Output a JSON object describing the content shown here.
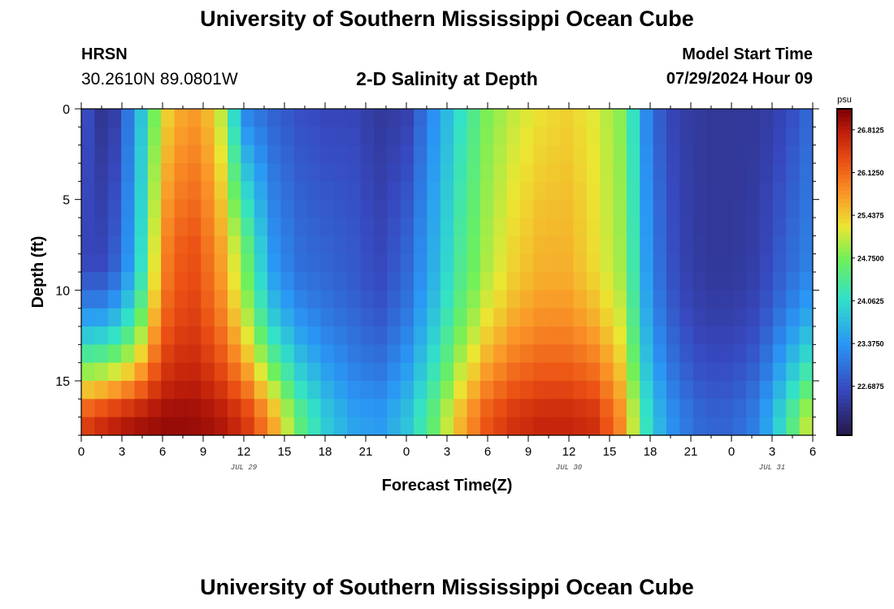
{
  "header": {
    "title": "University of Southern Mississippi Ocean Cube",
    "station_name": "HRSN",
    "coordinates": "30.2610N  89.0801W",
    "chart_title": "2-D Salinity at Depth",
    "model_start_label": "Model Start Time",
    "model_start_value": "07/29/2024 Hour 09"
  },
  "footer": {
    "title": "University of Southern Mississippi Ocean Cube"
  },
  "chart_data": {
    "type": "heatmap",
    "title": "2-D Salinity at Depth",
    "xlabel": "Forecast Time(Z)",
    "ylabel": "Depth (ft)",
    "x_unit": "forecast hour",
    "xlim": [
      0,
      54
    ],
    "ylim": [
      0,
      18
    ],
    "y_reversed": true,
    "x_ticks": [
      0,
      3,
      6,
      9,
      12,
      15,
      18,
      21,
      24,
      27,
      30,
      33,
      36,
      39,
      42,
      45,
      48,
      51,
      54
    ],
    "x_tick_labels": [
      "0",
      "3",
      "6",
      "9",
      "12",
      "15",
      "18",
      "21",
      "0",
      "3",
      "6",
      "9",
      "12",
      "15",
      "18",
      "21",
      "0",
      "3",
      "6"
    ],
    "y_ticks": [
      0,
      5,
      10,
      15
    ],
    "y_tick_labels": [
      "0",
      "5",
      "10",
      "15"
    ],
    "date_labels": [
      {
        "label": "JUL 29",
        "x": 12
      },
      {
        "label": "JUL 30",
        "x": 36
      },
      {
        "label": "JUL 31",
        "x": 51
      }
    ],
    "colorbar": {
      "unit_label": "psu",
      "range": [
        21.9,
        27.15
      ],
      "ticks": [
        26.8125,
        26.125,
        25.4375,
        24.75,
        24.0625,
        23.375,
        22.6875
      ],
      "tick_labels": [
        "26.8125",
        "26.1250",
        "25.4375",
        "24.7500",
        "24.0625",
        "23.3750",
        "22.6875"
      ]
    },
    "grid": false,
    "grid_size": {
      "columns": 55,
      "rows": 18
    },
    "sample_values": {
      "note": "salinity (psu) at time/depth samples used to build the field",
      "times": [
        0,
        2,
        4,
        6,
        8,
        10,
        12,
        14,
        16,
        18,
        20,
        22,
        24,
        26,
        28,
        30,
        32,
        34,
        36,
        38,
        40,
        42,
        44,
        46,
        48,
        50,
        52,
        54
      ],
      "surface": [
        22.8,
        22.2,
        23.4,
        25.3,
        25.8,
        25.4,
        23.2,
        22.9,
        22.7,
        22.6,
        22.6,
        22.4,
        22.5,
        23.3,
        24.1,
        24.8,
        25.1,
        25.3,
        25.4,
        25.2,
        24.8,
        23.0,
        22.5,
        22.4,
        22.4,
        22.4,
        22.6,
        23.0
      ],
      "mid_8ft": [
        22.6,
        22.6,
        23.6,
        25.9,
        26.4,
        25.9,
        24.8,
        23.4,
        23.0,
        22.9,
        22.8,
        22.6,
        22.9,
        23.6,
        24.4,
        25.0,
        25.4,
        25.6,
        25.6,
        25.3,
        24.9,
        23.2,
        22.6,
        22.4,
        22.4,
        22.5,
        22.9,
        23.2
      ],
      "bottom_17ft": [
        26.4,
        26.7,
        26.9,
        27.0,
        27.0,
        26.9,
        26.6,
        25.8,
        24.6,
        23.9,
        23.5,
        23.4,
        23.8,
        24.6,
        25.6,
        26.3,
        26.6,
        26.7,
        26.7,
        26.6,
        25.8,
        23.9,
        23.2,
        22.9,
        22.9,
        23.2,
        24.2,
        25.3
      ]
    }
  }
}
